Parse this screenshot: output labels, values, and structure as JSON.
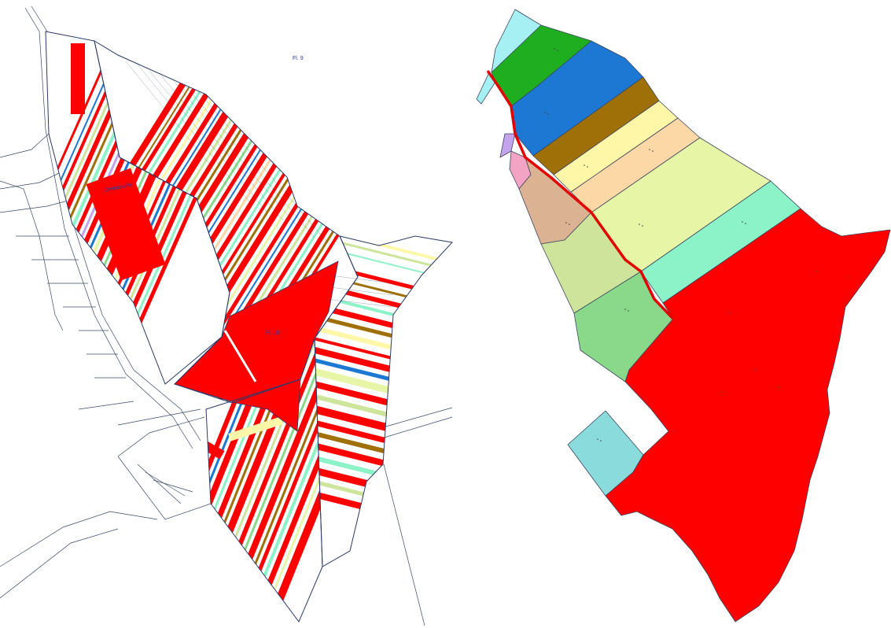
{
  "left_map": {
    "sheet_label_top": "Fl. 9",
    "sheet_label_center": "Fl. 10",
    "locality_label": "Ombrosella"
  },
  "colors": {
    "red": "#ff0000",
    "blue": "#1c78d2",
    "green": "#1fae1f",
    "brown": "#a07008",
    "yellow": "#fff7a8",
    "peach": "#fbd8a6",
    "yellow_green": "#e6f5a6",
    "aqua": "#8cf2c8",
    "tan": "#dbb393",
    "sage": "#cde49a",
    "medium_green": "#8ad98a",
    "sky": "#a6eff3",
    "lavender": "#c4a4ee",
    "pink": "#f3a4c4",
    "teal": "#8adcdc",
    "line": "#2b3a6b"
  }
}
